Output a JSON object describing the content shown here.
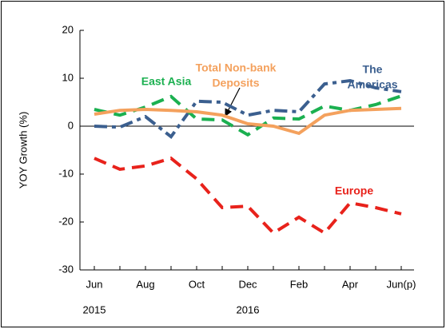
{
  "chart_data": {
    "type": "line",
    "y_label": "YOY Growth (%)",
    "categories": [
      "Jun",
      null,
      "Aug",
      null,
      "Oct",
      null,
      "Dec",
      null,
      "Feb",
      null,
      "Apr",
      null,
      "Jun(p)"
    ],
    "year_labels": [
      "2015",
      "2016"
    ],
    "ylim": [
      -30,
      20
    ],
    "yticks": [
      -30,
      -20,
      -10,
      0,
      10,
      20
    ],
    "series": [
      {
        "label": [
          "Europe"
        ],
        "color": "#e8221b",
        "style": "dash",
        "values": [
          -6.7,
          -9,
          -8.3,
          -6.7,
          -11,
          -17,
          -16.7,
          -22.3,
          -19,
          -22.3,
          -16,
          -17,
          -18.3
        ]
      },
      {
        "label": [
          "The",
          "Americas"
        ],
        "color": "#3b5f8f",
        "style": "dashdot",
        "values": [
          0,
          -0.2,
          2,
          -2.2,
          5.2,
          5,
          2.3,
          3.3,
          3,
          8.8,
          9.5,
          8,
          7.2
        ]
      },
      {
        "label": [
          "East Asia"
        ],
        "color": "#1bb050",
        "style": "dash",
        "values": [
          3.5,
          2.3,
          4,
          6.2,
          1.5,
          1.3,
          -1.8,
          1.7,
          1.5,
          4.2,
          3.3,
          4.5,
          6.3
        ]
      },
      {
        "label": [
          "Total Non-bank",
          "Deposits"
        ],
        "color": "#f4a15d",
        "style": "solid",
        "values": [
          2.5,
          3.3,
          3.5,
          3.3,
          3,
          2.3,
          0.5,
          0,
          -1.5,
          2.3,
          3.3,
          3.5,
          3.7
        ]
      }
    ]
  }
}
